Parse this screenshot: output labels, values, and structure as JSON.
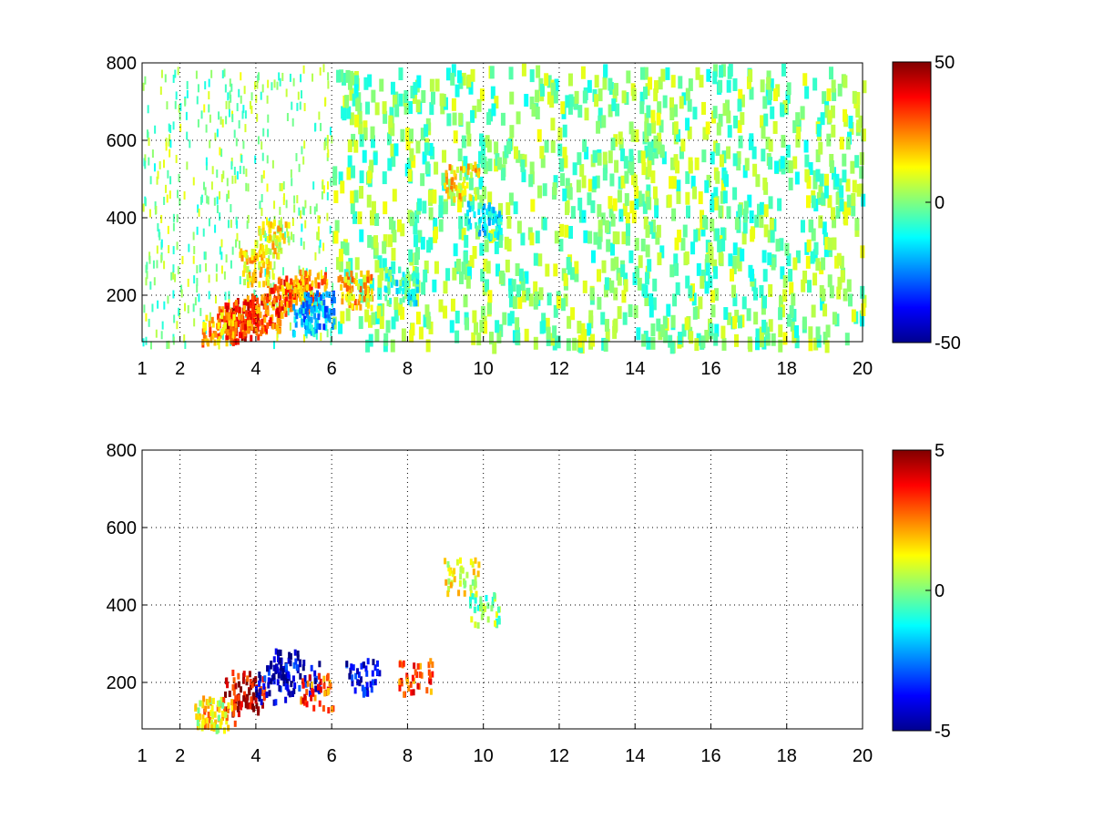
{
  "chart_data": [
    {
      "type": "heatmap",
      "title": "",
      "xlabel": "",
      "ylabel": "",
      "xlim": [
        1,
        20
      ],
      "ylim": [
        80,
        800
      ],
      "xticks": [
        1,
        2,
        4,
        6,
        8,
        10,
        12,
        14,
        16,
        18,
        20
      ],
      "yticks": [
        200,
        400,
        600,
        800
      ],
      "grid": true,
      "colormap": "jet",
      "clim": [
        -50,
        50
      ],
      "colorbar_ticks": [
        -50,
        0,
        50
      ],
      "cells": [
        {
          "x": 3.6,
          "y": 140,
          "v": 38
        },
        {
          "x": 3.8,
          "y": 150,
          "v": 32
        },
        {
          "x": 3.4,
          "y": 130,
          "v": 30
        },
        {
          "x": 4.2,
          "y": 160,
          "v": 28
        },
        {
          "x": 4.6,
          "y": 200,
          "v": 30
        },
        {
          "x": 5.0,
          "y": 210,
          "v": 26
        },
        {
          "x": 5.4,
          "y": 230,
          "v": 24
        },
        {
          "x": 3.0,
          "y": 115,
          "v": 22
        },
        {
          "x": 5.4,
          "y": 150,
          "v": -18
        },
        {
          "x": 5.6,
          "y": 170,
          "v": -22
        },
        {
          "x": 4.0,
          "y": 280,
          "v": 15
        },
        {
          "x": 4.4,
          "y": 350,
          "v": 12
        },
        {
          "x": 6.6,
          "y": 220,
          "v": 18
        },
        {
          "x": 9.4,
          "y": 500,
          "v": 14
        },
        {
          "x": 10.0,
          "y": 400,
          "v": -14
        },
        {
          "x": 7.8,
          "y": 230,
          "v": -8
        }
      ],
      "scatter_noise": {
        "x_range": [
          1,
          20
        ],
        "y_range": [
          80,
          800
        ],
        "v_range": [
          -12,
          12
        ]
      }
    },
    {
      "type": "heatmap",
      "title": "",
      "xlabel": "",
      "ylabel": "",
      "xlim": [
        1,
        20
      ],
      "ylim": [
        80,
        800
      ],
      "xticks": [
        1,
        2,
        4,
        6,
        8,
        10,
        12,
        14,
        16,
        18,
        20
      ],
      "yticks": [
        200,
        400,
        600,
        800
      ],
      "grid": true,
      "colormap": "jet",
      "clim": [
        -5,
        5
      ],
      "colorbar_ticks": [
        -5,
        0,
        5
      ],
      "cells": [
        {
          "x": 3.6,
          "y": 170,
          "v": 5
        },
        {
          "x": 3.8,
          "y": 190,
          "v": 4
        },
        {
          "x": 4.4,
          "y": 200,
          "v": -4
        },
        {
          "x": 4.8,
          "y": 250,
          "v": -5
        },
        {
          "x": 5.2,
          "y": 220,
          "v": -4
        },
        {
          "x": 5.6,
          "y": 180,
          "v": 3
        },
        {
          "x": 3.0,
          "y": 130,
          "v": 2
        },
        {
          "x": 2.8,
          "y": 120,
          "v": 1
        },
        {
          "x": 6.8,
          "y": 220,
          "v": -4
        },
        {
          "x": 8.2,
          "y": 220,
          "v": 3
        },
        {
          "x": 9.4,
          "y": 480,
          "v": 1
        },
        {
          "x": 10.0,
          "y": 400,
          "v": 0
        }
      ]
    }
  ]
}
